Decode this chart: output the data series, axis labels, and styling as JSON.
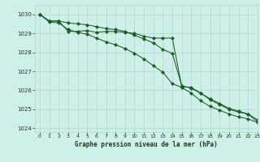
{
  "title": "Graphe pression niveau de la mer (hPa)",
  "bg_color": "#cff0e8",
  "grid_color": "#b0d8cc",
  "line_color": "#1a5c28",
  "xlim": [
    -0.5,
    23
  ],
  "ylim": [
    1023.8,
    1030.5
  ],
  "yticks": [
    1024,
    1025,
    1026,
    1027,
    1028,
    1029,
    1030
  ],
  "xticks": [
    0,
    1,
    2,
    3,
    4,
    5,
    6,
    7,
    8,
    9,
    10,
    11,
    12,
    13,
    14,
    15,
    16,
    17,
    18,
    19,
    20,
    21,
    22,
    23
  ],
  "series1_x": [
    0,
    1,
    2,
    3,
    4,
    5,
    6,
    7,
    8,
    9,
    10,
    11,
    12,
    13,
    14,
    15,
    16,
    17,
    18,
    19,
    20,
    21,
    22,
    23
  ],
  "series1_y": [
    1030.0,
    1029.65,
    1029.65,
    1029.1,
    1029.1,
    1029.15,
    1029.05,
    1029.1,
    1029.1,
    1029.05,
    1029.0,
    1028.85,
    1028.75,
    1028.75,
    1028.75,
    1026.2,
    1026.15,
    1025.85,
    1025.5,
    1025.25,
    1025.0,
    1024.85,
    1024.75,
    1024.35
  ],
  "series2_x": [
    0,
    1,
    2,
    3,
    4,
    5,
    6,
    7,
    8,
    9,
    10,
    11,
    12,
    13,
    14,
    15,
    16,
    17,
    18,
    19,
    20,
    21,
    22,
    23
  ],
  "series2_y": [
    1030.0,
    1029.6,
    1029.55,
    1029.2,
    1029.05,
    1028.95,
    1028.75,
    1028.55,
    1028.4,
    1028.2,
    1027.95,
    1027.65,
    1027.3,
    1026.95,
    1026.35,
    1026.15,
    1025.85,
    1025.45,
    1025.15,
    1024.95,
    1024.75,
    1024.6,
    1024.5,
    1024.3
  ],
  "series3_x": [
    0,
    1,
    2,
    3,
    4,
    5,
    6,
    7,
    8,
    9,
    10,
    11,
    12,
    13,
    14,
    15,
    16,
    17,
    18,
    19,
    20,
    21,
    22,
    23
  ],
  "series3_y": [
    1030.0,
    1029.65,
    1029.65,
    1029.55,
    1029.5,
    1029.45,
    1029.35,
    1029.25,
    1029.2,
    1029.1,
    1028.9,
    1028.7,
    1028.5,
    1028.15,
    1027.95,
    1026.25,
    1026.1,
    1025.85,
    1025.55,
    1025.3,
    1025.05,
    1024.9,
    1024.75,
    1024.45
  ]
}
